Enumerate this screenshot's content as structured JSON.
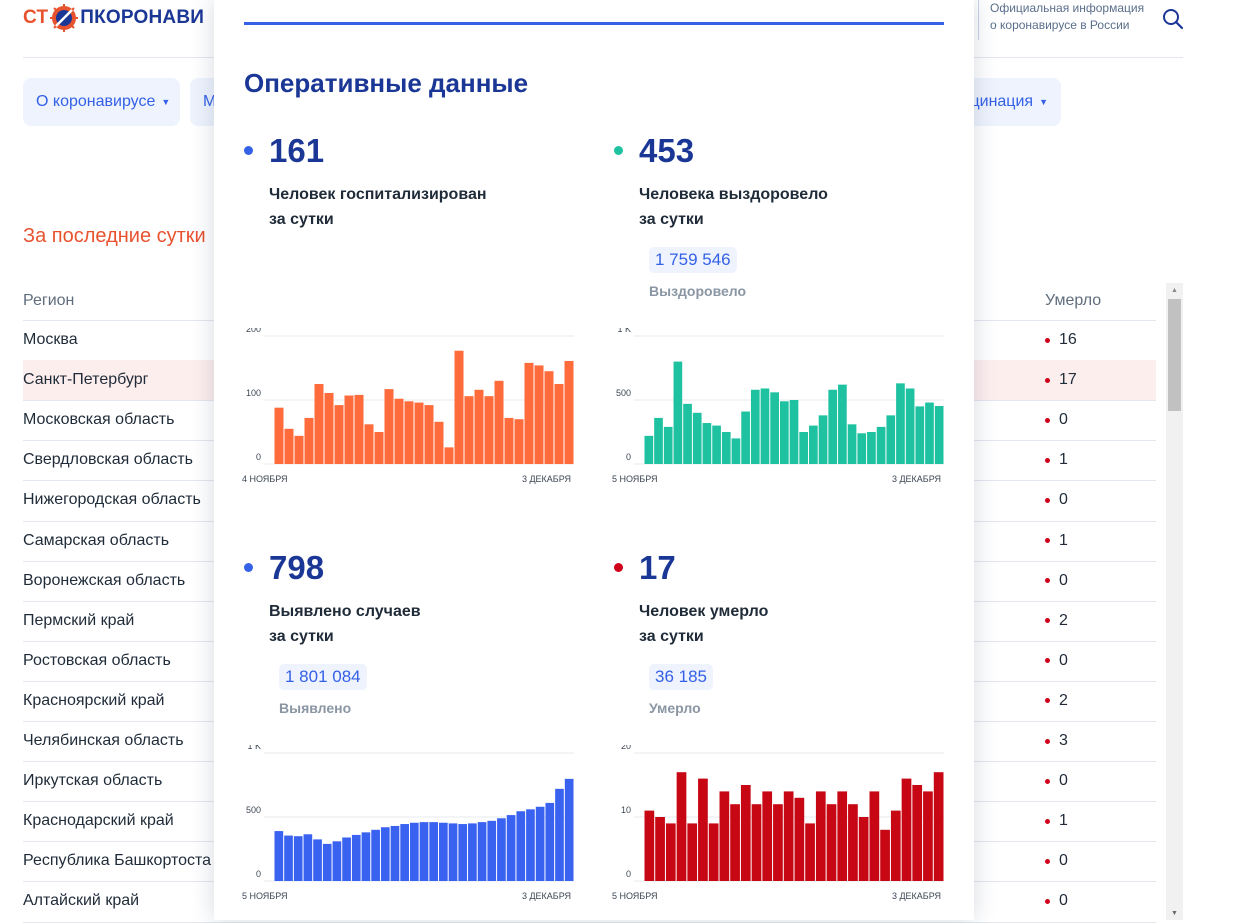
{
  "header": {
    "logo_part1": "СТ",
    "logo_part2": "ПКОРОНАВИ",
    "official_line1": "Официальная информация",
    "official_line2": "о коронавирусе в России"
  },
  "nav": {
    "item1": "О коронавирусе",
    "item2": "М",
    "item3": "цинация"
  },
  "section": {
    "period_title": "За последние сутки",
    "col_region": "Регион",
    "col_died": "Умерло"
  },
  "table_rows": [
    {
      "region": "Москва",
      "died": "16"
    },
    {
      "region": "Санкт-Петербург",
      "died": "17"
    },
    {
      "region": "Московская область",
      "died": "0"
    },
    {
      "region": "Свердловская область",
      "died": "1"
    },
    {
      "region": "Нижегородская область",
      "died": "0"
    },
    {
      "region": "Самарская область",
      "died": "1"
    },
    {
      "region": "Воронежская область",
      "died": "0"
    },
    {
      "region": "Пермский край",
      "died": "2"
    },
    {
      "region": "Ростовская область",
      "died": "0"
    },
    {
      "region": "Красноярский край",
      "died": "2"
    },
    {
      "region": "Челябинская область",
      "died": "3"
    },
    {
      "region": "Иркутская область",
      "died": "0"
    },
    {
      "region": "Краснодарский край",
      "died": "1"
    },
    {
      "region": "Республика Башкортоста",
      "died": "0"
    },
    {
      "region": "Алтайский край",
      "died": "0"
    }
  ],
  "panel": {
    "title": "Оперативные данные",
    "stats": {
      "hosp": {
        "value": "161",
        "label_line1": "Человек госпитализирован",
        "label_line2": "за сутки",
        "color": "#3461e6"
      },
      "recov": {
        "value": "453",
        "label_line1": "Человека выздоровело",
        "label_line2": "за сутки",
        "color": "#1ec2a0",
        "total": "1 759 546",
        "total_label": "Выздоровело"
      },
      "cases": {
        "value": "798",
        "label_line1": "Выявлено случаев",
        "label_line2": "за сутки",
        "color": "#3461e6",
        "total": "1 801 084",
        "total_label": "Выявлено"
      },
      "deaths": {
        "value": "17",
        "label_line1": "Человек умерло",
        "label_line2": "за сутки",
        "color": "#d0021b",
        "total": "36 185",
        "total_label": "Умерло"
      }
    }
  },
  "chart_data": [
    {
      "id": "hosp",
      "type": "bar",
      "color": "#ff6b3b",
      "ylim": [
        0,
        200
      ],
      "y_ticks": [
        "0",
        "100",
        "200"
      ],
      "x_start_label": "4 НОЯБРЯ",
      "x_end_label": "3 ДЕКАБРЯ",
      "values": [
        88,
        55,
        44,
        72,
        125,
        111,
        92,
        107,
        108,
        62,
        50,
        117,
        102,
        98,
        96,
        92,
        66,
        26,
        177,
        106,
        116,
        106,
        130,
        72,
        70,
        158,
        154,
        145,
        125,
        161
      ]
    },
    {
      "id": "recov",
      "type": "bar",
      "color": "#1ec2a0",
      "ylim": [
        0,
        1000
      ],
      "y_ticks": [
        "0",
        "500",
        "1 K"
      ],
      "x_start_label": "5 НОЯБРЯ",
      "x_end_label": "3 ДЕКАБРЯ",
      "values": [
        220,
        360,
        290,
        800,
        470,
        400,
        320,
        300,
        250,
        200,
        410,
        580,
        590,
        560,
        490,
        500,
        250,
        300,
        380,
        580,
        620,
        310,
        240,
        250,
        290,
        380,
        630,
        590,
        450,
        480,
        453
      ]
    },
    {
      "id": "cases",
      "type": "bar",
      "color": "#3a62f0",
      "ylim": [
        0,
        1000
      ],
      "y_ticks": [
        "0",
        "500",
        "1 K"
      ],
      "x_start_label": "5 НОЯБРЯ",
      "x_end_label": "3 ДЕКАБРЯ",
      "values": [
        390,
        355,
        350,
        365,
        325,
        290,
        310,
        340,
        360,
        380,
        400,
        420,
        430,
        445,
        455,
        460,
        460,
        455,
        450,
        445,
        450,
        460,
        470,
        490,
        515,
        545,
        560,
        580,
        610,
        720,
        798
      ]
    },
    {
      "id": "deaths",
      "type": "bar",
      "color": "#c70714",
      "ylim": [
        0,
        20
      ],
      "y_ticks": [
        "0",
        "10",
        "20"
      ],
      "x_start_label": "5 НОЯБРЯ",
      "x_end_label": "3 ДЕКАБРЯ",
      "values": [
        11,
        10,
        9,
        17,
        9,
        16,
        9,
        14,
        12,
        15,
        12,
        14,
        12,
        14,
        13,
        9,
        14,
        12,
        14,
        12,
        10,
        14,
        8,
        11,
        16,
        15,
        14,
        17
      ]
    }
  ]
}
